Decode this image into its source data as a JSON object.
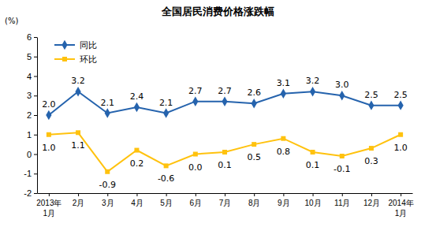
{
  "chart_data": {
    "type": "line",
    "title": "全国居民消费价格涨跌幅",
    "y_label": "(%)",
    "categories": [
      "2013年\n1月",
      "2月",
      "3月",
      "4月",
      "5月",
      "6月",
      "7月",
      "8月",
      "9月",
      "10月",
      "11月",
      "12月",
      "2014年\n1月"
    ],
    "series": [
      {
        "name": "同比",
        "color": "#2563ad",
        "marker": "diamond",
        "values": [
          2.0,
          3.2,
          2.1,
          2.4,
          2.1,
          2.7,
          2.7,
          2.6,
          3.1,
          3.2,
          3.0,
          2.5,
          2.5
        ],
        "value_labels": [
          "2.0",
          "3.2",
          "2.1",
          "2.4",
          "2.1",
          "2.7",
          "2.7",
          "2.6",
          "3.1",
          "3.2",
          "3.0",
          "2.5",
          "2.5"
        ]
      },
      {
        "name": "环比",
        "color": "#ffc20e",
        "marker": "square",
        "values": [
          1.0,
          1.1,
          -0.9,
          0.2,
          -0.6,
          0.0,
          0.1,
          0.5,
          0.8,
          0.1,
          -0.1,
          0.3,
          1.0
        ],
        "value_labels": [
          "1.0",
          "1.1",
          "-0.9",
          "0.2",
          "-0.6",
          "0.0",
          "0.1",
          "0.5",
          "0.8",
          "0.1",
          "-0.1",
          "0.3",
          "1.0"
        ]
      }
    ],
    "ylim": [
      -2,
      6
    ],
    "yticks": [
      -2,
      -1,
      0,
      1,
      2,
      3,
      4,
      5,
      6
    ],
    "grid": false,
    "legend": "upper left",
    "data_labels": true
  }
}
